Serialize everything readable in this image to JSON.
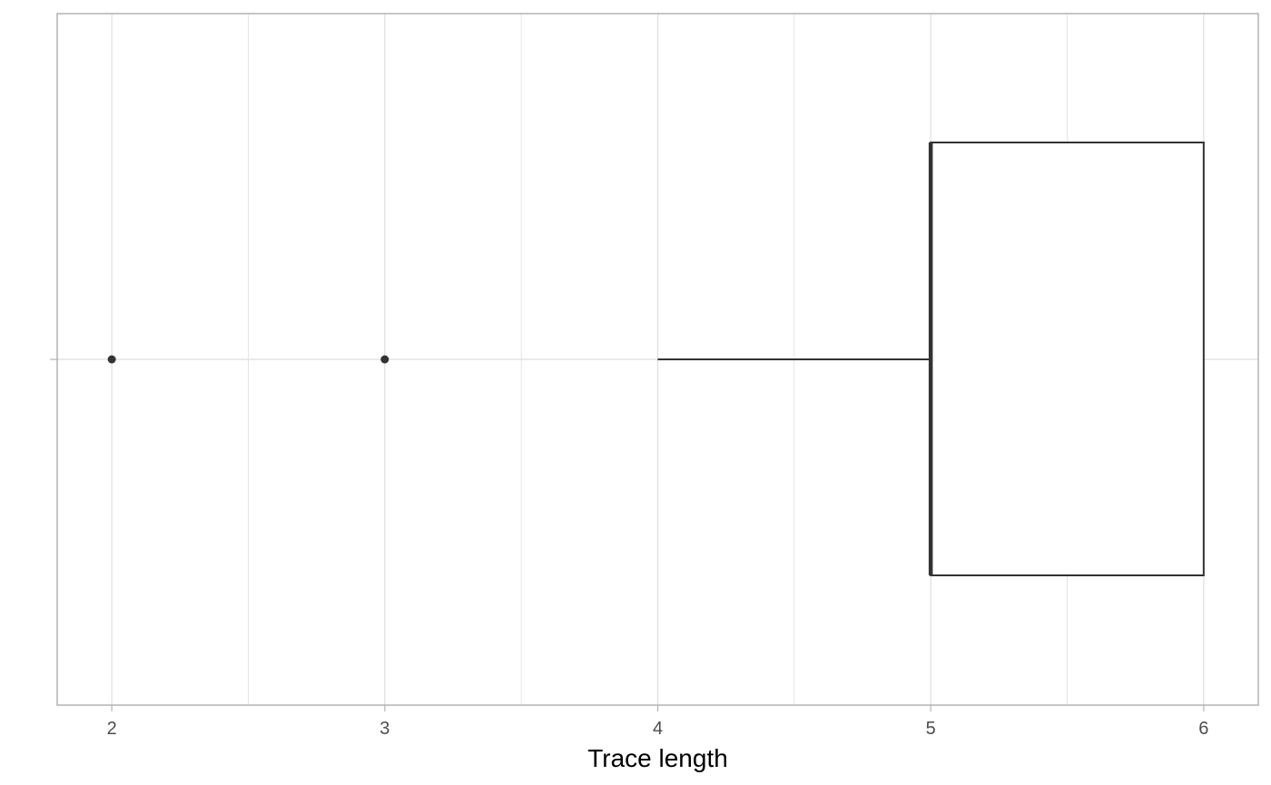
{
  "chart_data": {
    "type": "boxplot",
    "orientation": "horizontal",
    "title": "",
    "xlabel": "Trace length",
    "ylabel": "",
    "xlim": [
      1.8,
      6.2
    ],
    "x_ticks": [
      2,
      3,
      4,
      5,
      6
    ],
    "x_tick_labels": [
      "2",
      "3",
      "4",
      "5",
      "6"
    ],
    "grid": true,
    "legend": "none",
    "box": {
      "min": 4,
      "q1": 5,
      "median": 5,
      "q3": 6,
      "max": 6
    },
    "outliers": [
      2,
      3
    ],
    "colors": {
      "grid": "#dedede",
      "panel_border": "#b3b3b3",
      "box_line": "#333333",
      "outlier": "#333333",
      "tick_text": "#4d4d4d"
    }
  }
}
